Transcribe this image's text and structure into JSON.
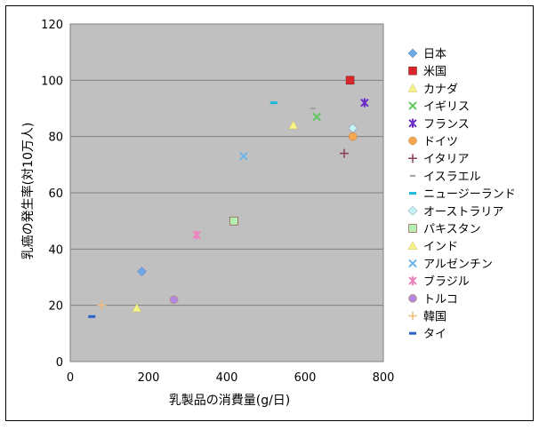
{
  "chart_data": {
    "type": "scatter",
    "title": "",
    "xlabel": "乳製品の消費量(g/日)",
    "ylabel": "乳癌の発生率(対10万人)",
    "xlim": [
      0,
      800
    ],
    "ylim": [
      0,
      120
    ],
    "xticks": [
      0,
      200,
      400,
      600,
      800
    ],
    "yticks": [
      0,
      20,
      40,
      60,
      80,
      100,
      120
    ],
    "grid": "horizontal",
    "legend": "right",
    "background": "#c0c0c0",
    "series": [
      {
        "name": "日本",
        "x": [
          183
        ],
        "y": [
          32
        ],
        "marker": "diamond",
        "color": "#6fa8e8"
      },
      {
        "name": "米国",
        "x": [
          715
        ],
        "y": [
          100
        ],
        "marker": "square",
        "color": "#d9262b"
      },
      {
        "name": "カナダ",
        "x": [
          570
        ],
        "y": [
          84
        ],
        "marker": "triangle",
        "color": "#f6f38a"
      },
      {
        "name": "イギリス",
        "x": [
          630
        ],
        "y": [
          87
        ],
        "marker": "x",
        "color": "#5cc85c"
      },
      {
        "name": "フランス",
        "x": [
          752
        ],
        "y": [
          92
        ],
        "marker": "star",
        "color": "#6a2bc9"
      },
      {
        "name": "ドイツ",
        "x": [
          722
        ],
        "y": [
          80
        ],
        "marker": "circle",
        "color": "#f4a650"
      },
      {
        "name": "イタリア",
        "x": [
          700
        ],
        "y": [
          74
        ],
        "marker": "plus",
        "color": "#8a3a5a"
      },
      {
        "name": "イスラエル",
        "x": [
          620
        ],
        "y": [
          90
        ],
        "marker": "dash",
        "color": "#a0a0a0"
      },
      {
        "name": "ニュージーランド",
        "x": [
          520
        ],
        "y": [
          92
        ],
        "marker": "bar",
        "color": "#1cb8e0"
      },
      {
        "name": "オーストラリア",
        "x": [
          722
        ],
        "y": [
          83
        ],
        "marker": "diamond",
        "color": "#c8f4f4"
      },
      {
        "name": "パキスタン",
        "x": [
          418
        ],
        "y": [
          50
        ],
        "marker": "square",
        "color": "#b4f0b4"
      },
      {
        "name": "インド",
        "x": [
          170
        ],
        "y": [
          19
        ],
        "marker": "triangle",
        "color": "#f6f38a"
      },
      {
        "name": "アルゼンチン",
        "x": [
          443
        ],
        "y": [
          73
        ],
        "marker": "x",
        "color": "#6ab4e8"
      },
      {
        "name": "ブラジル",
        "x": [
          323
        ],
        "y": [
          45
        ],
        "marker": "star",
        "color": "#ef7fbf"
      },
      {
        "name": "トルコ",
        "x": [
          265
        ],
        "y": [
          22
        ],
        "marker": "circle",
        "color": "#b088e0"
      },
      {
        "name": "韓国",
        "x": [
          80
        ],
        "y": [
          20
        ],
        "marker": "plus",
        "color": "#f4b878"
      },
      {
        "name": "タイ",
        "x": [
          55
        ],
        "y": [
          16
        ],
        "marker": "bar",
        "color": "#2a64c8"
      }
    ]
  }
}
